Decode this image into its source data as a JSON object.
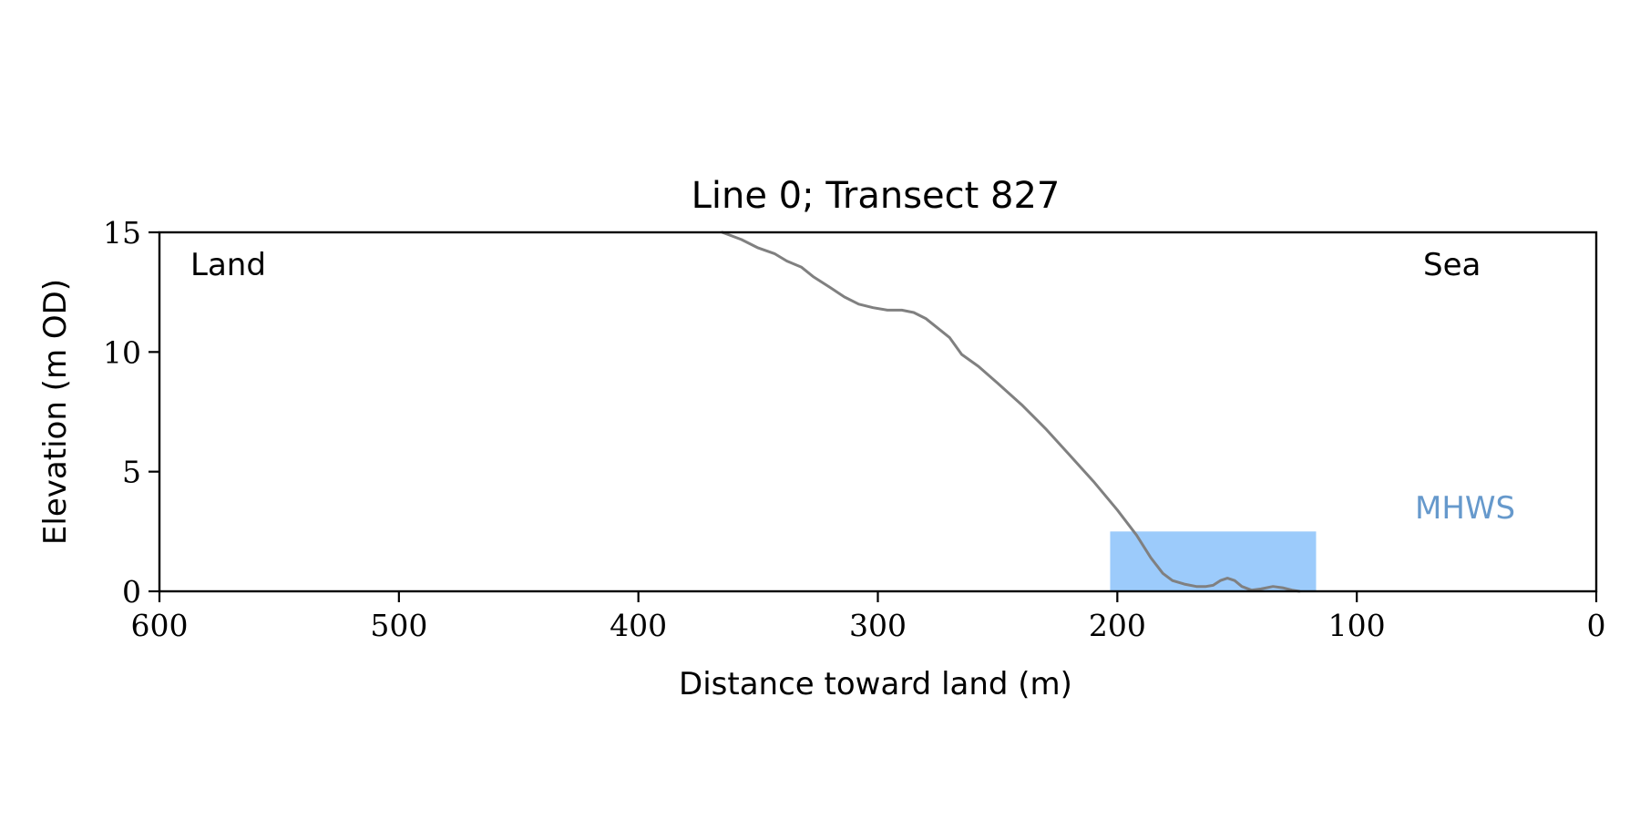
{
  "chart_data": {
    "type": "line",
    "title": "Line 0; Transect 827",
    "xlabel": "Distance toward land (m)",
    "ylabel": "Elevation (m OD)",
    "xlim": [
      600,
      0
    ],
    "ylim": [
      0,
      15
    ],
    "x_reversed": true,
    "x_ticks": [
      "600",
      "500",
      "400",
      "300",
      "200",
      "100",
      "0"
    ],
    "y_ticks": [
      "0",
      "5",
      "10",
      "15"
    ],
    "grid": false,
    "legend": "none",
    "annotations": {
      "land": "Land",
      "sea": "Sea",
      "mhws": "MHWS"
    },
    "mhws_region": {
      "x_start": 203,
      "x_end": 117,
      "elevation": 2.5
    },
    "colors": {
      "profile": "#808080",
      "water": "#9ccbfb",
      "mhws_text": "#6699cc"
    },
    "series": [
      {
        "points": [
          [
            365,
            15.0
          ],
          [
            357,
            14.7
          ],
          [
            350,
            14.35
          ],
          [
            343,
            14.1
          ],
          [
            338,
            13.8
          ],
          [
            332,
            13.55
          ],
          [
            327,
            13.15
          ],
          [
            320,
            12.7
          ],
          [
            314,
            12.3
          ],
          [
            308,
            12.0
          ],
          [
            302,
            11.85
          ],
          [
            296,
            11.75
          ],
          [
            290,
            11.75
          ],
          [
            285,
            11.65
          ],
          [
            280,
            11.4
          ],
          [
            275,
            11.0
          ],
          [
            270,
            10.6
          ],
          [
            265,
            9.9
          ],
          [
            258,
            9.4
          ],
          [
            250,
            8.7
          ],
          [
            240,
            7.8
          ],
          [
            230,
            6.8
          ],
          [
            220,
            5.7
          ],
          [
            210,
            4.6
          ],
          [
            200,
            3.4
          ],
          [
            192,
            2.35
          ],
          [
            186,
            1.4
          ],
          [
            181,
            0.75
          ],
          [
            177,
            0.45
          ],
          [
            172,
            0.3
          ],
          [
            167,
            0.2
          ],
          [
            163,
            0.2
          ],
          [
            160,
            0.25
          ],
          [
            157,
            0.45
          ],
          [
            154,
            0.55
          ],
          [
            151,
            0.45
          ],
          [
            148,
            0.2
          ],
          [
            144,
            0.05
          ],
          [
            140,
            0.1
          ],
          [
            135,
            0.2
          ],
          [
            131,
            0.15
          ],
          [
            127,
            0.05
          ],
          [
            124,
            0.0
          ]
        ]
      }
    ]
  }
}
